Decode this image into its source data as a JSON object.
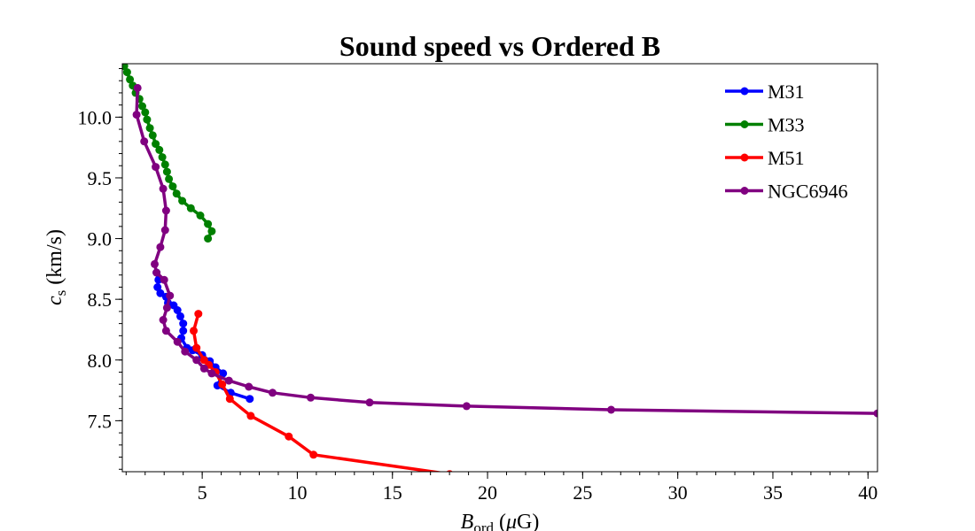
{
  "chart_data": {
    "type": "line",
    "title": "Sound speed vs Ordered B",
    "xlabel": {
      "main": "B",
      "sub": "ord",
      "unit_open": " (",
      "unit_mu": "μ",
      "unit_close": "G)"
    },
    "ylabel": {
      "main": "c",
      "sub": "s",
      "unit": " (km/s)"
    },
    "xlim": [
      0.8,
      40.5
    ],
    "ylim": [
      7.08,
      10.44
    ],
    "xticks": [
      5,
      10,
      15,
      20,
      25,
      30,
      35,
      40
    ],
    "xtick_labels": [
      "5",
      "10",
      "15",
      "20",
      "25",
      "30",
      "35",
      "40"
    ],
    "yticks": [
      7.5,
      8.0,
      8.5,
      9.0,
      9.5,
      10.0
    ],
    "ytick_labels": [
      "7.5",
      "8.0",
      "8.5",
      "9.0",
      "9.5",
      "10.0"
    ],
    "legend_position": "top-right",
    "grid": false,
    "series": [
      {
        "name": "M31",
        "color": "#0000ff",
        "x": [
          2.6,
          2.7,
          2.65,
          2.8,
          3.1,
          3.2,
          3.5,
          3.7,
          3.85,
          4.0,
          4.0,
          3.9,
          4.2,
          4.5,
          5.0,
          5.4,
          5.7,
          6.1,
          5.8,
          6.5,
          7.5
        ],
        "y": [
          8.72,
          8.66,
          8.6,
          8.55,
          8.52,
          8.47,
          8.45,
          8.41,
          8.36,
          8.3,
          8.24,
          8.18,
          8.1,
          8.08,
          8.04,
          7.99,
          7.94,
          7.89,
          7.79,
          7.73,
          7.68
        ]
      },
      {
        "name": "M33",
        "color": "#008000",
        "x": [
          0.9,
          1.05,
          1.2,
          1.35,
          1.5,
          1.7,
          1.85,
          2.0,
          2.1,
          2.25,
          2.4,
          2.55,
          2.75,
          2.9,
          3.05,
          3.15,
          3.25,
          3.45,
          3.65,
          3.95,
          4.4,
          4.9,
          5.3,
          5.5,
          5.3
        ],
        "y": [
          10.42,
          10.37,
          10.31,
          10.26,
          10.2,
          10.15,
          10.09,
          10.04,
          9.98,
          9.91,
          9.85,
          9.78,
          9.73,
          9.67,
          9.61,
          9.55,
          9.49,
          9.43,
          9.37,
          9.31,
          9.25,
          9.19,
          9.12,
          9.06,
          9.0
        ]
      },
      {
        "name": "M51",
        "color": "#ff0000",
        "x": [
          4.8,
          4.55,
          4.7,
          5.1,
          5.35,
          5.7,
          6.05,
          6.45,
          7.55,
          9.55,
          10.85,
          18.0
        ],
        "y": [
          8.38,
          8.24,
          8.1,
          8.0,
          7.96,
          7.9,
          7.8,
          7.68,
          7.54,
          7.37,
          7.22,
          7.06
        ]
      },
      {
        "name": "NGC6946",
        "color": "#800080",
        "x": [
          1.6,
          1.55,
          1.95,
          2.55,
          2.95,
          3.1,
          3.05,
          2.8,
          2.5,
          2.6,
          3.0,
          3.3,
          3.15,
          2.95,
          3.1,
          3.7,
          4.1,
          4.7,
          5.1,
          5.5,
          6.4,
          7.45,
          8.7,
          10.7,
          13.8,
          18.9,
          26.5,
          40.5
        ],
        "y": [
          10.24,
          10.02,
          9.8,
          9.59,
          9.41,
          9.23,
          9.07,
          8.93,
          8.79,
          8.72,
          8.66,
          8.53,
          8.43,
          8.33,
          8.24,
          8.15,
          8.07,
          8.0,
          7.93,
          7.89,
          7.83,
          7.78,
          7.73,
          7.69,
          7.65,
          7.62,
          7.59,
          7.56
        ]
      }
    ]
  }
}
